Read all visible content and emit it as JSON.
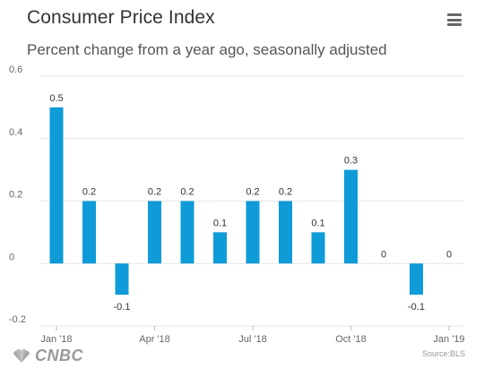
{
  "header": {
    "title": "Consumer Price Index",
    "subtitle": "Percent change from a year ago, seasonally adjusted"
  },
  "menu": {
    "icon": "hamburger-menu-icon"
  },
  "footer": {
    "logo_text": "CNBC",
    "source": "Source:BLS"
  },
  "colors": {
    "bar": "#0e9bd8",
    "grid": "#e6e6e6",
    "axis_text": "#666666"
  },
  "chart_data": {
    "type": "bar",
    "title": "Consumer Price Index",
    "subtitle": "Percent change from a year ago, seasonally adjusted",
    "xlabel": "",
    "ylabel": "",
    "ylim": [
      -0.2,
      0.6
    ],
    "yticks": [
      "-0.2",
      "0",
      "0.2",
      "0.4",
      "0.6"
    ],
    "grid": true,
    "x_tick_labels": [
      "Jan '18",
      "Apr '18",
      "Jul '18",
      "Oct '18",
      "Jan '19"
    ],
    "series": [
      {
        "categories": [
          "Jan '18",
          "Feb '18",
          "Mar '18",
          "Apr '18",
          "May '18",
          "Jun '18",
          "Jul '18",
          "Aug '18",
          "Sep '18",
          "Oct '18",
          "Nov '18",
          "Dec '18",
          "Jan '19"
        ],
        "values": [
          0.5,
          0.2,
          -0.1,
          0.2,
          0.2,
          0.1,
          0.2,
          0.2,
          0.1,
          0.3,
          0,
          -0.1,
          0
        ],
        "labels": [
          "0.5",
          "0.2",
          "-0.1",
          "0.2",
          "0.2",
          "0.1",
          "0.2",
          "0.2",
          "0.1",
          "0.3",
          "0",
          "-0.1",
          "0"
        ]
      }
    ]
  }
}
